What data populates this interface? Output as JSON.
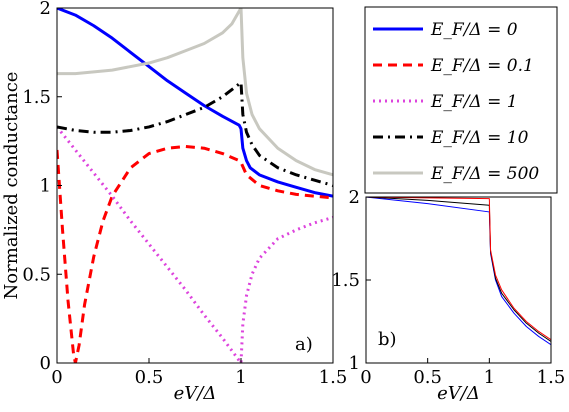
{
  "chart_data": [
    {
      "type": "line",
      "panel_label": "a)",
      "xlabel": "eV/Δ",
      "ylabel": "Normalized conductance",
      "xlim": [
        0,
        1.5
      ],
      "ylim": [
        0,
        2
      ],
      "xticks": [
        "0",
        "0.5",
        "1",
        "1.5"
      ],
      "yticks": [
        "0",
        "0.5",
        "1",
        "1.5",
        "2"
      ],
      "grid": false,
      "legend_position": "outside-right",
      "series": [
        {
          "name": "E_F/Δ = 0",
          "legend_label": "E_F/Δ = 0",
          "color": "#0000ff",
          "style": "solid",
          "points": [
            [
              0,
              2.0
            ],
            [
              0.1,
              1.96
            ],
            [
              0.2,
              1.9
            ],
            [
              0.3,
              1.83
            ],
            [
              0.4,
              1.75
            ],
            [
              0.5,
              1.67
            ],
            [
              0.6,
              1.59
            ],
            [
              0.7,
              1.52
            ],
            [
              0.8,
              1.45
            ],
            [
              0.9,
              1.39
            ],
            [
              0.99,
              1.34
            ],
            [
              1.0,
              1.32
            ],
            [
              1.01,
              1.21
            ],
            [
              1.03,
              1.14
            ],
            [
              1.05,
              1.1
            ],
            [
              1.1,
              1.06
            ],
            [
              1.2,
              1.02
            ],
            [
              1.3,
              0.99
            ],
            [
              1.4,
              0.96
            ],
            [
              1.5,
              0.94
            ]
          ]
        },
        {
          "name": "E_F/Δ = 0.1",
          "legend_label": "E_F/Δ = 0.1",
          "color": "#ff0000",
          "style": "dashed",
          "points": [
            [
              0,
              1.2
            ],
            [
              0.03,
              0.75
            ],
            [
              0.06,
              0.35
            ],
            [
              0.09,
              0.05
            ],
            [
              0.1,
              0.0
            ],
            [
              0.12,
              0.1
            ],
            [
              0.15,
              0.33
            ],
            [
              0.2,
              0.6
            ],
            [
              0.25,
              0.8
            ],
            [
              0.3,
              0.94
            ],
            [
              0.4,
              1.1
            ],
            [
              0.5,
              1.18
            ],
            [
              0.6,
              1.21
            ],
            [
              0.7,
              1.22
            ],
            [
              0.8,
              1.21
            ],
            [
              0.9,
              1.18
            ],
            [
              0.99,
              1.14
            ],
            [
              1.0,
              1.13
            ],
            [
              1.03,
              1.06
            ],
            [
              1.1,
              1.0
            ],
            [
              1.2,
              0.97
            ],
            [
              1.3,
              0.95
            ],
            [
              1.4,
              0.94
            ],
            [
              1.5,
              0.93
            ]
          ]
        },
        {
          "name": "E_F/Δ = 1",
          "legend_label": "E_F/Δ = 1",
          "color": "#dd44dd",
          "style": "dotted",
          "points": [
            [
              0,
              1.33
            ],
            [
              0.1,
              1.2
            ],
            [
              0.2,
              1.07
            ],
            [
              0.3,
              0.94
            ],
            [
              0.4,
              0.8
            ],
            [
              0.5,
              0.67
            ],
            [
              0.6,
              0.54
            ],
            [
              0.7,
              0.41
            ],
            [
              0.8,
              0.27
            ],
            [
              0.9,
              0.14
            ],
            [
              1.0,
              0.0
            ],
            [
              1.01,
              0.22
            ],
            [
              1.03,
              0.38
            ],
            [
              1.06,
              0.5
            ],
            [
              1.1,
              0.59
            ],
            [
              1.2,
              0.7
            ],
            [
              1.3,
              0.75
            ],
            [
              1.4,
              0.79
            ],
            [
              1.5,
              0.82
            ]
          ]
        },
        {
          "name": "E_F/Δ = 10",
          "legend_label": "E_F/Δ = 10",
          "color": "#000000",
          "style": "dashdot",
          "points": [
            [
              0,
              1.33
            ],
            [
              0.1,
              1.31
            ],
            [
              0.2,
              1.3
            ],
            [
              0.3,
              1.3
            ],
            [
              0.4,
              1.31
            ],
            [
              0.5,
              1.33
            ],
            [
              0.6,
              1.36
            ],
            [
              0.7,
              1.4
            ],
            [
              0.8,
              1.44
            ],
            [
              0.9,
              1.5
            ],
            [
              0.95,
              1.54
            ],
            [
              1.0,
              1.58
            ],
            [
              1.01,
              1.4
            ],
            [
              1.03,
              1.3
            ],
            [
              1.06,
              1.23
            ],
            [
              1.1,
              1.17
            ],
            [
              1.2,
              1.1
            ],
            [
              1.3,
              1.06
            ],
            [
              1.4,
              1.03
            ],
            [
              1.5,
              1.0
            ]
          ]
        },
        {
          "name": "E_F/Δ = 500",
          "legend_label": "E_F/Δ = 500",
          "color": "#c8c8c0",
          "style": "solid",
          "points": [
            [
              0,
              1.63
            ],
            [
              0.1,
              1.63
            ],
            [
              0.2,
              1.64
            ],
            [
              0.3,
              1.65
            ],
            [
              0.4,
              1.67
            ],
            [
              0.5,
              1.69
            ],
            [
              0.6,
              1.72
            ],
            [
              0.7,
              1.76
            ],
            [
              0.8,
              1.8
            ],
            [
              0.9,
              1.86
            ],
            [
              0.95,
              1.91
            ],
            [
              1.0,
              2.0
            ],
            [
              1.01,
              1.72
            ],
            [
              1.03,
              1.52
            ],
            [
              1.06,
              1.4
            ],
            [
              1.1,
              1.32
            ],
            [
              1.2,
              1.21
            ],
            [
              1.3,
              1.14
            ],
            [
              1.4,
              1.09
            ],
            [
              1.5,
              1.06
            ]
          ]
        }
      ]
    },
    {
      "type": "line",
      "panel_label": "b)",
      "xlabel": "eV/Δ",
      "xlim": [
        0,
        1.5
      ],
      "ylim": [
        1,
        2
      ],
      "xticks": [
        "0",
        "0.5",
        "1",
        "1.5"
      ],
      "yticks": [
        "1",
        "1.5",
        "2"
      ],
      "grid": false,
      "series": [
        {
          "color": "#0000ff",
          "points": [
            [
              0,
              2.0
            ],
            [
              0.5,
              1.96
            ],
            [
              1.0,
              1.91
            ],
            [
              1.01,
              1.66
            ],
            [
              1.05,
              1.5
            ],
            [
              1.1,
              1.4
            ],
            [
              1.2,
              1.3
            ],
            [
              1.3,
              1.22
            ],
            [
              1.4,
              1.16
            ],
            [
              1.5,
              1.11
            ]
          ]
        },
        {
          "color": "#000000",
          "points": [
            [
              0,
              2.0
            ],
            [
              0.5,
              1.98
            ],
            [
              1.0,
              1.95
            ],
            [
              1.01,
              1.67
            ],
            [
              1.05,
              1.51
            ],
            [
              1.1,
              1.42
            ],
            [
              1.2,
              1.32
            ],
            [
              1.3,
              1.24
            ],
            [
              1.4,
              1.18
            ],
            [
              1.5,
              1.13
            ]
          ]
        },
        {
          "color": "#ff0000",
          "points": [
            [
              0,
              2.0
            ],
            [
              0.5,
              1.995
            ],
            [
              1.0,
              1.99
            ],
            [
              1.01,
              1.68
            ],
            [
              1.05,
              1.53
            ],
            [
              1.1,
              1.44
            ],
            [
              1.2,
              1.33
            ],
            [
              1.3,
              1.25
            ],
            [
              1.4,
              1.19
            ],
            [
              1.5,
              1.14
            ]
          ]
        }
      ]
    }
  ]
}
